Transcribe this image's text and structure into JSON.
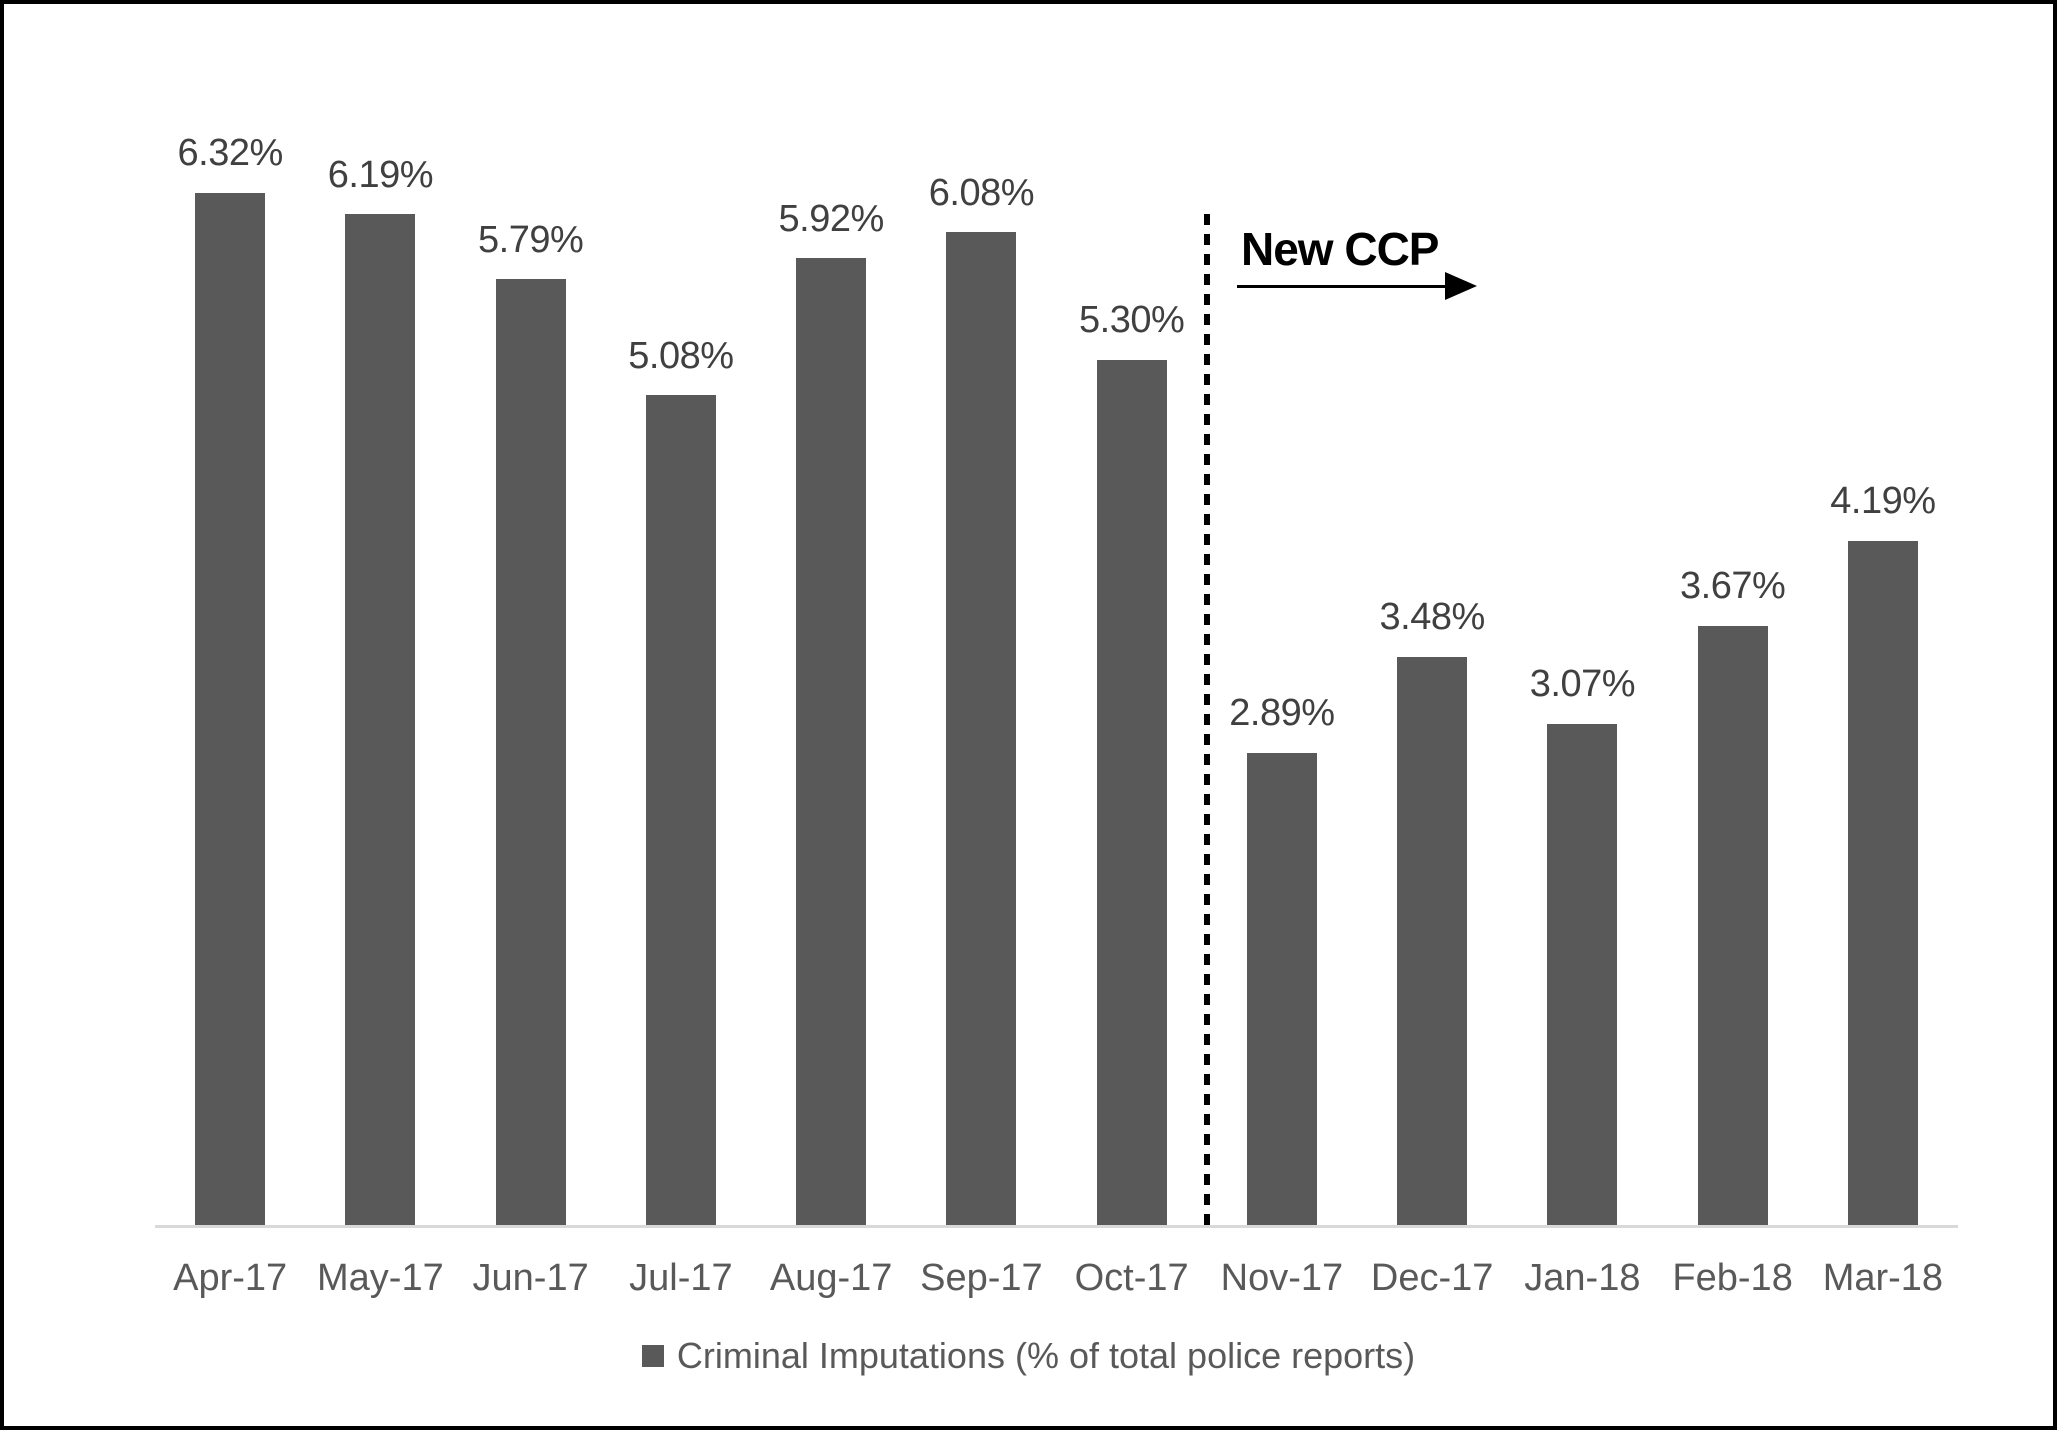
{
  "chart_data": {
    "type": "bar",
    "title": "",
    "categories": [
      "Apr-17",
      "May-17",
      "Jun-17",
      "Jul-17",
      "Aug-17",
      "Sep-17",
      "Oct-17",
      "Nov-17",
      "Dec-17",
      "Jan-18",
      "Feb-18",
      "Mar-18"
    ],
    "values": [
      6.32,
      6.19,
      5.79,
      5.08,
      5.92,
      6.08,
      5.3,
      2.89,
      3.48,
      3.07,
      3.67,
      4.19
    ],
    "value_labels": [
      "6.32%",
      "6.19%",
      "5.79%",
      "5.08%",
      "5.92%",
      "6.08%",
      "5.30%",
      "2.89%",
      "3.48%",
      "3.07%",
      "3.67%",
      "4.19%"
    ],
    "series_name": "Criminal Imputations (% of total police reports)",
    "legend": "Criminal Imputations (% of total police reports)",
    "legend_position": "bottom",
    "annotation": {
      "text": "New CCP",
      "arrow_direction": "right",
      "divider_after_category": "Oct-17",
      "divider_after_index": 6,
      "divider_style": "dotted-vertical-line"
    },
    "xlabel": "",
    "ylabel": "",
    "ylim": [
      0,
      7.5
    ],
    "grid": false,
    "y_axis_visible": false,
    "colors": {
      "bar": "#595959",
      "value_label": "#404040",
      "axis_label": "#595959",
      "legend_text": "#595959",
      "axis_line": "#d9d9d9",
      "divider": "#000000",
      "annotation_text": "#000000",
      "background": "#ffffff",
      "frame_border": "#000000"
    }
  }
}
